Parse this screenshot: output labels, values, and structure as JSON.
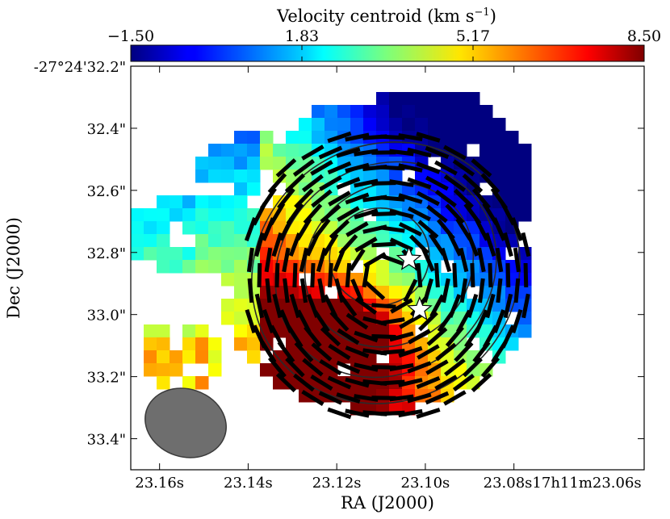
{
  "chart_data": {
    "type": "heatmap",
    "title": "",
    "xlabel": "RA (J2000)",
    "ylabel": "Dec (J2000)",
    "x_ticks": [
      "23.16s",
      "23.14s",
      "23.12s",
      "23.10s",
      "23.08s17h11m23.06s"
    ],
    "y_ticks": [
      "-27°24'32.2\"",
      "32.4\"",
      "32.6\"",
      "32.8\"",
      "33.0\"",
      "33.2\"",
      "33.4\""
    ],
    "x_range_s": [
      23.1665,
      23.0506
    ],
    "y_range_arcsec": [
      32.2,
      33.5
    ],
    "colorbar": {
      "label": "Velocity centroid (km s⁻¹)",
      "label_text": "Velocity centroid (km s",
      "label_sup": "−1",
      "label_close": ")",
      "ticks": [
        "−1.50",
        "1.83",
        "5.17",
        "8.50"
      ],
      "vmin": -1.5,
      "vmax": 8.5,
      "colormap": "jet"
    },
    "velocity_gradient": {
      "center_ra_s": 23.107,
      "center_dec_arcsec": 32.95,
      "blue_direction": "north-west",
      "red_direction": "south-east",
      "v_blue_extreme": -1.5,
      "v_red_extreme": 8.5
    },
    "polarization_vectors": "segments follow concentric arcs around the stars",
    "contours": "concentric elliptical intensity contours",
    "markers": [
      {
        "symbol": "star",
        "ra_s": 23.1037,
        "dec_arcsec": 32.822
      },
      {
        "symbol": "star",
        "ra_s": 23.1013,
        "dec_arcsec": 32.984
      }
    ],
    "beam": {
      "position": "bottom-left",
      "color": "#6e6e6e"
    }
  }
}
